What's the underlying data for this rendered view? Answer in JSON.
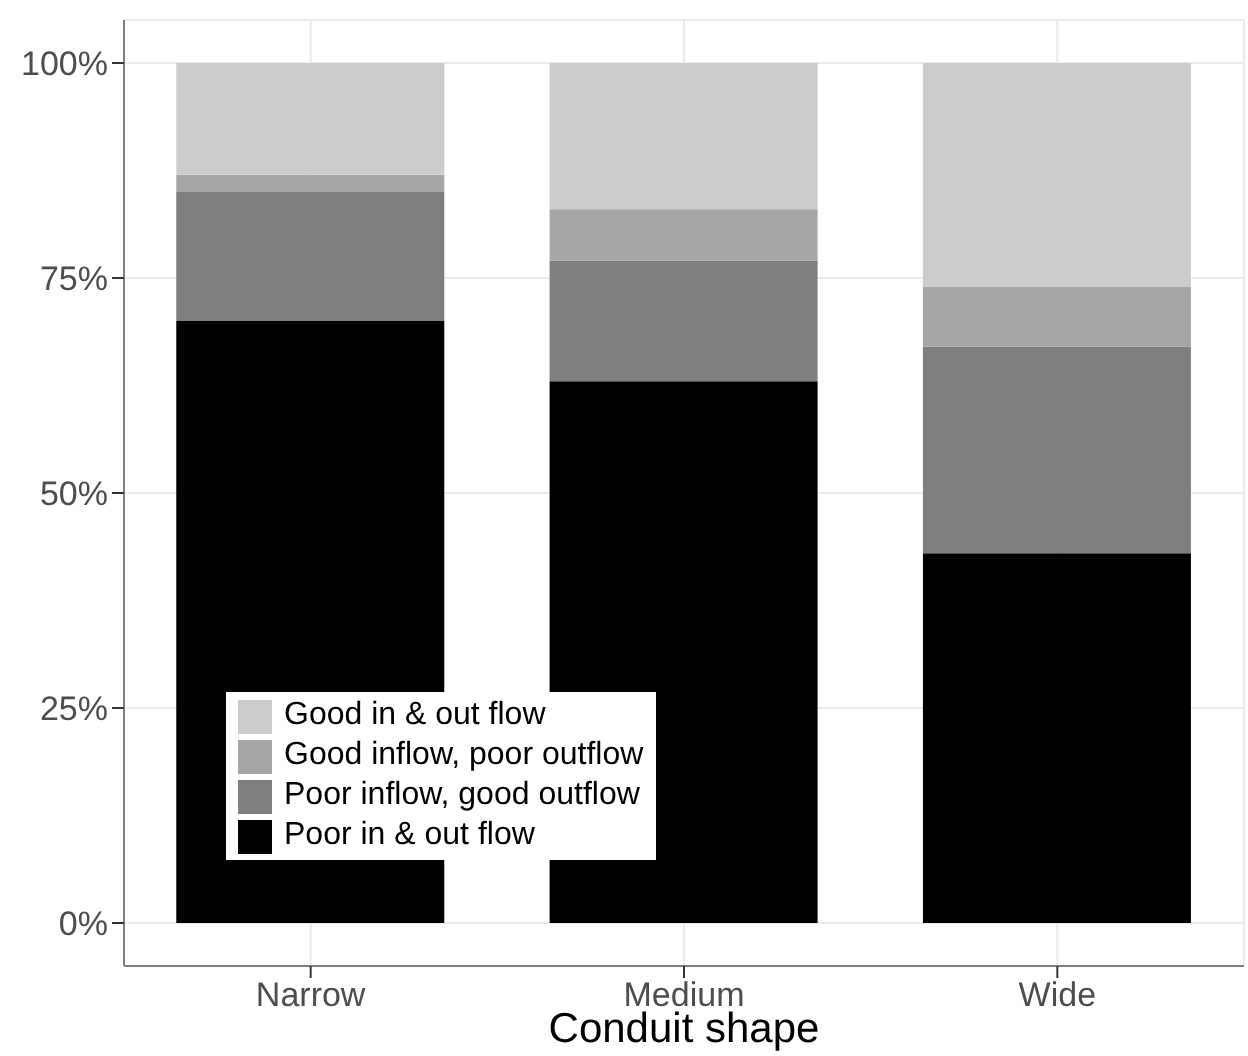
{
  "chart_data": {
    "type": "bar",
    "stacked": true,
    "xlabel": "Conduit shape",
    "categories": [
      "Narrow",
      "Medium",
      "Wide"
    ],
    "series": [
      {
        "name": "Poor in & out flow",
        "color": "#000000",
        "values": [
          70,
          63,
          43
        ]
      },
      {
        "name": "Poor inflow, good outflow",
        "color": "#7f7f7f",
        "values": [
          15,
          14,
          24
        ]
      },
      {
        "name": "Good inflow, poor outflow",
        "color": "#a6a6a6",
        "values": [
          2,
          6,
          7
        ]
      },
      {
        "name": "Good in & out flow",
        "color": "#cccccc",
        "values": [
          13,
          17,
          26
        ]
      }
    ],
    "ylim": [
      -5,
      105
    ],
    "yticks": [
      {
        "value": 0,
        "label": "0%"
      },
      {
        "value": 25,
        "label": "25%"
      },
      {
        "value": 50,
        "label": "50%"
      },
      {
        "value": 75,
        "label": "75%"
      },
      {
        "value": 100,
        "label": "100%"
      }
    ],
    "grid": true,
    "legend": "bottom left"
  }
}
